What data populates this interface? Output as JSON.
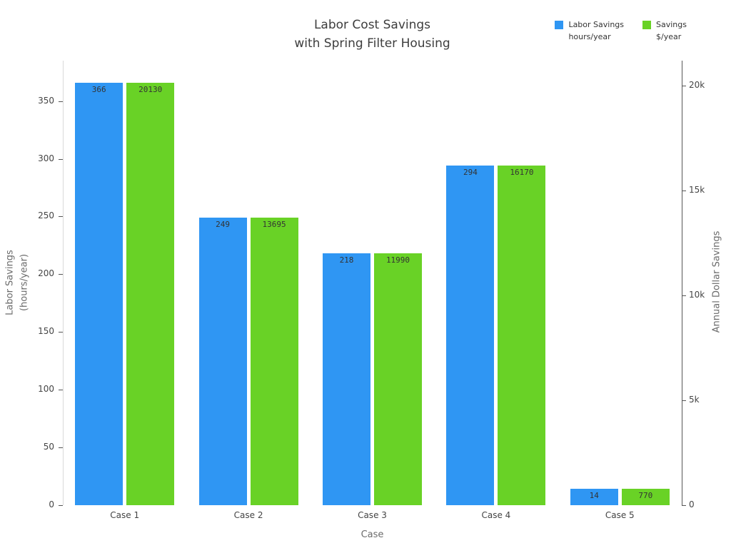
{
  "title": "Labor Cost Savings\nwith Spring Filter Housing",
  "legend": [
    {
      "id": "hours",
      "label": "Labor Savings\nhours/year",
      "color": "#2f96f3"
    },
    {
      "id": "dollars",
      "label": "Savings\n$/year",
      "color": "#69d226"
    }
  ],
  "chart_data": {
    "type": "bar",
    "title": "Labor Cost Savings with Spring Filter Housing",
    "categories": [
      "Case 1",
      "Case 2",
      "Case 3",
      "Case 4",
      "Case 5"
    ],
    "series": [
      {
        "id": "hours",
        "name": "Labor Savings hours/year",
        "axis": "left",
        "color": "#2f96f3",
        "values": [
          366,
          249,
          218,
          294,
          14
        ]
      },
      {
        "id": "dollars",
        "name": "Savings $/year",
        "axis": "right",
        "color": "#69d226",
        "values": [
          20130,
          13695,
          11990,
          16170,
          770
        ]
      }
    ],
    "xlabel": "Case",
    "ylabel_left": "Labor Savings\n(hours/year)",
    "ylabel_right": "Annual Dollar Savings",
    "ylim_left": [
      0,
      385
    ],
    "ylim_right": [
      0,
      21175
    ],
    "yticks_left": [
      0,
      50,
      100,
      150,
      200,
      250,
      300,
      350
    ],
    "yticks_right": [
      {
        "v": 0,
        "label": "0"
      },
      {
        "v": 5000,
        "label": "5k"
      },
      {
        "v": 10000,
        "label": "10k"
      },
      {
        "v": 15000,
        "label": "15k"
      },
      {
        "v": 20000,
        "label": "20k"
      }
    ],
    "grid": false,
    "legend_position": "top-right",
    "bar_labels_inside_top": true
  }
}
